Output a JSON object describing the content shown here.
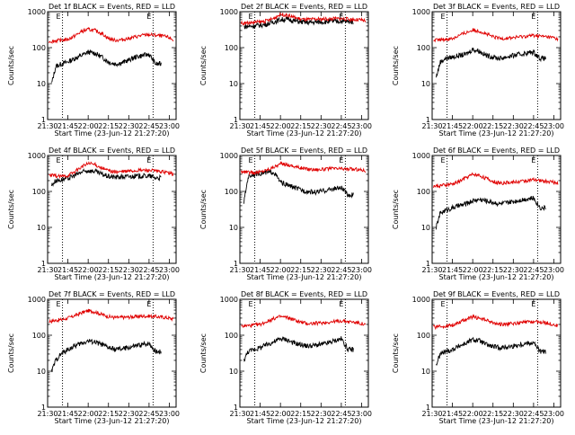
{
  "start_time_label": "Start Time (23-Jun-12 21:27:20)",
  "ylabel": "Counts/sec",
  "marker_letter": "E",
  "series_colors": {
    "events": "#000000",
    "lld": "#e00000"
  },
  "chart_data": [
    {
      "type": "line",
      "title": "Det 1f BLACK = Events, RED = LLD",
      "xlabel": "Start Time (23-Jun-12 21:27:20)",
      "ylabel": "Counts/sec",
      "xlim": [
        "21:30",
        "23:05"
      ],
      "xticks": [
        "21:30",
        "21:45",
        "22:00",
        "22:15",
        "22:30",
        "22:45",
        "23:00"
      ],
      "ylim": [
        1,
        1000
      ],
      "yscale": "log",
      "yticks": [
        "1",
        "10",
        "100",
        "1000"
      ],
      "event_markers": [
        "21:41",
        "22:48"
      ],
      "x": [
        "21:33",
        "21:36",
        "21:40",
        "21:45",
        "21:50",
        "21:55",
        "22:00",
        "22:05",
        "22:10",
        "22:15",
        "22:20",
        "22:25",
        "22:30",
        "22:35",
        "22:40",
        "22:45",
        "22:50",
        "22:55",
        "23:00",
        "23:03"
      ],
      "series": [
        {
          "name": "Events",
          "start": "21:33",
          "end": "22:54",
          "values": [
            10,
            30,
            35,
            40,
            50,
            60,
            75,
            70,
            55,
            40,
            35,
            38,
            45,
            55,
            60,
            65,
            35,
            null,
            null,
            null
          ]
        },
        {
          "name": "LLD",
          "start": "21:31",
          "end": "23:03",
          "values": [
            150,
            155,
            160,
            170,
            210,
            280,
            320,
            300,
            250,
            180,
            160,
            165,
            180,
            200,
            220,
            230,
            220,
            210,
            190,
            160
          ]
        }
      ]
    },
    {
      "type": "line",
      "title": "Det 2f BLACK = Events, RED = LLD",
      "xlabel": "Start Time (23-Jun-12 21:27:20)",
      "ylabel": "Counts/sec",
      "xlim": [
        "21:30",
        "23:05"
      ],
      "xticks": [
        "21:30",
        "21:45",
        "22:00",
        "22:15",
        "22:30",
        "22:45",
        "23:00"
      ],
      "ylim": [
        1,
        1000
      ],
      "yscale": "log",
      "yticks": [
        "1",
        "10",
        "100",
        "1000"
      ],
      "event_markers": [
        "21:41",
        "22:48"
      ],
      "x": [
        "21:33",
        "21:36",
        "21:40",
        "21:45",
        "21:50",
        "21:55",
        "22:00",
        "22:05",
        "22:10",
        "22:15",
        "22:20",
        "22:25",
        "22:30",
        "22:35",
        "22:40",
        "22:45",
        "22:50",
        "22:55",
        "23:00",
        "23:03"
      ],
      "series": [
        {
          "name": "Events",
          "start": "21:33",
          "end": "22:54",
          "values": [
            380,
            390,
            400,
            420,
            450,
            520,
            600,
            620,
            560,
            520,
            500,
            510,
            520,
            530,
            540,
            540,
            530,
            null,
            null,
            null
          ]
        },
        {
          "name": "LLD",
          "start": "21:31",
          "end": "23:03",
          "values": [
            480,
            490,
            500,
            520,
            560,
            650,
            850,
            800,
            700,
            620,
            600,
            610,
            620,
            630,
            640,
            640,
            620,
            600,
            580,
            550
          ]
        }
      ]
    },
    {
      "type": "line",
      "title": "Det 3f BLACK = Events, RED = LLD",
      "xlabel": "Start Time (23-Jun-12 21:27:20)",
      "ylabel": "Counts/sec",
      "xlim": [
        "21:30",
        "23:05"
      ],
      "xticks": [
        "21:30",
        "21:45",
        "22:00",
        "22:15",
        "22:30",
        "22:45",
        "23:00"
      ],
      "ylim": [
        1,
        1000
      ],
      "yscale": "log",
      "yticks": [
        "1",
        "10",
        "100",
        "1000"
      ],
      "event_markers": [
        "21:41",
        "22:48"
      ],
      "x": [
        "21:33",
        "21:36",
        "21:40",
        "21:45",
        "21:50",
        "21:55",
        "22:00",
        "22:05",
        "22:10",
        "22:15",
        "22:20",
        "22:25",
        "22:30",
        "22:35",
        "22:40",
        "22:45",
        "22:50",
        "22:55",
        "23:00",
        "23:03"
      ],
      "series": [
        {
          "name": "Events",
          "start": "21:33",
          "end": "22:54",
          "values": [
            15,
            40,
            50,
            55,
            60,
            65,
            90,
            80,
            60,
            55,
            50,
            55,
            60,
            65,
            70,
            75,
            50,
            null,
            null,
            null
          ]
        },
        {
          "name": "LLD",
          "start": "21:31",
          "end": "23:03",
          "values": [
            160,
            165,
            170,
            180,
            220,
            260,
            310,
            290,
            240,
            200,
            180,
            185,
            190,
            200,
            210,
            220,
            210,
            200,
            190,
            170
          ]
        }
      ]
    },
    {
      "type": "line",
      "title": "Det 4f BLACK = Events, RED = LLD",
      "xlabel": "Start Time (23-Jun-12 21:27:20)",
      "ylabel": "Counts/sec",
      "xlim": [
        "21:30",
        "23:05"
      ],
      "xticks": [
        "21:30",
        "21:45",
        "22:00",
        "22:15",
        "22:30",
        "22:45",
        "23:00"
      ],
      "ylim": [
        1,
        1000
      ],
      "yscale": "log",
      "yticks": [
        "1",
        "10",
        "100",
        "1000"
      ],
      "event_markers": [
        "21:41",
        "22:48"
      ],
      "x": [
        "21:33",
        "21:36",
        "21:40",
        "21:45",
        "21:50",
        "21:55",
        "22:00",
        "22:05",
        "22:10",
        "22:15",
        "22:20",
        "22:25",
        "22:30",
        "22:35",
        "22:40",
        "22:45",
        "22:50",
        "22:55",
        "23:00",
        "23:03"
      ],
      "series": [
        {
          "name": "Events",
          "start": "21:33",
          "end": "22:54",
          "values": [
            150,
            200,
            210,
            230,
            280,
            340,
            380,
            360,
            300,
            260,
            250,
            255,
            260,
            265,
            270,
            270,
            240,
            null,
            null,
            null
          ]
        },
        {
          "name": "LLD",
          "start": "21:31",
          "end": "23:03",
          "values": [
            280,
            270,
            260,
            280,
            350,
            480,
            600,
            560,
            450,
            380,
            350,
            355,
            370,
            380,
            390,
            390,
            370,
            350,
            330,
            300
          ]
        }
      ]
    },
    {
      "type": "line",
      "title": "Det 5f BLACK = Events, RED = LLD",
      "xlabel": "Start Time (23-Jun-12 21:27:20)",
      "ylabel": "Counts/sec",
      "xlim": [
        "21:30",
        "23:05"
      ],
      "xticks": [
        "21:30",
        "21:45",
        "22:00",
        "22:15",
        "22:30",
        "22:45",
        "23:00"
      ],
      "ylim": [
        1,
        1000
      ],
      "yscale": "log",
      "yticks": [
        "1",
        "10",
        "100",
        "1000"
      ],
      "event_markers": [
        "21:41",
        "22:48"
      ],
      "x": [
        "21:33",
        "21:36",
        "21:40",
        "21:45",
        "21:50",
        "21:55",
        "22:00",
        "22:05",
        "22:10",
        "22:15",
        "22:20",
        "22:25",
        "22:30",
        "22:35",
        "22:40",
        "22:45",
        "22:50",
        "22:55",
        "23:00",
        "23:03"
      ],
      "series": [
        {
          "name": "Events",
          "start": "21:33",
          "end": "22:54",
          "values": [
            50,
            250,
            300,
            320,
            330,
            350,
            180,
            150,
            130,
            110,
            100,
            95,
            100,
            110,
            120,
            125,
            80,
            null,
            null,
            null
          ]
        },
        {
          "name": "LLD",
          "start": "21:31",
          "end": "23:03",
          "values": [
            350,
            340,
            330,
            350,
            400,
            480,
            580,
            560,
            500,
            450,
            420,
            410,
            410,
            420,
            430,
            430,
            420,
            410,
            400,
            380
          ]
        }
      ]
    },
    {
      "type": "line",
      "title": "Det 6f BLACK = Events, RED = LLD",
      "xlabel": "Start Time (23-Jun-12 21:27:20)",
      "ylabel": "Counts/sec",
      "xlim": [
        "21:30",
        "23:05"
      ],
      "xticks": [
        "21:30",
        "21:45",
        "22:00",
        "22:15",
        "22:30",
        "22:45",
        "23:00"
      ],
      "ylim": [
        1,
        1000
      ],
      "yscale": "log",
      "yticks": [
        "1",
        "10",
        "100",
        "1000"
      ],
      "event_markers": [
        "21:41",
        "22:48"
      ],
      "x": [
        "21:33",
        "21:36",
        "21:40",
        "21:45",
        "21:50",
        "21:55",
        "22:00",
        "22:05",
        "22:10",
        "22:15",
        "22:20",
        "22:25",
        "22:30",
        "22:35",
        "22:40",
        "22:45",
        "22:50",
        "22:55",
        "23:00",
        "23:03"
      ],
      "series": [
        {
          "name": "Events",
          "start": "21:33",
          "end": "22:54",
          "values": [
            10,
            25,
            30,
            35,
            40,
            45,
            55,
            60,
            55,
            50,
            45,
            48,
            52,
            58,
            62,
            65,
            35,
            null,
            null,
            null
          ]
        },
        {
          "name": "LLD",
          "start": "21:31",
          "end": "23:03",
          "values": [
            140,
            145,
            150,
            160,
            190,
            240,
            300,
            280,
            230,
            190,
            170,
            175,
            180,
            190,
            200,
            210,
            200,
            190,
            180,
            160
          ]
        }
      ]
    },
    {
      "type": "line",
      "title": "Det 7f BLACK = Events, RED = LLD",
      "xlabel": "Start Time (23-Jun-12 21:27:20)",
      "ylabel": "Counts/sec",
      "xlim": [
        "21:30",
        "23:05"
      ],
      "xticks": [
        "21:30",
        "21:45",
        "22:00",
        "22:15",
        "22:30",
        "22:45",
        "23:00"
      ],
      "ylim": [
        1,
        1000
      ],
      "yscale": "log",
      "yticks": [
        "1",
        "10",
        "100",
        "1000"
      ],
      "event_markers": [
        "21:41",
        "22:48"
      ],
      "x": [
        "21:33",
        "21:36",
        "21:40",
        "21:45",
        "21:50",
        "21:55",
        "22:00",
        "22:05",
        "22:10",
        "22:15",
        "22:20",
        "22:25",
        "22:30",
        "22:35",
        "22:40",
        "22:45",
        "22:50",
        "22:55",
        "23:00",
        "23:03"
      ],
      "series": [
        {
          "name": "Events",
          "start": "21:33",
          "end": "22:54",
          "values": [
            10,
            20,
            30,
            40,
            50,
            60,
            70,
            65,
            55,
            45,
            40,
            42,
            45,
            50,
            55,
            60,
            35,
            null,
            null,
            null
          ]
        },
        {
          "name": "LLD",
          "start": "21:31",
          "end": "23:03",
          "values": [
            250,
            260,
            270,
            300,
            350,
            420,
            480,
            450,
            380,
            330,
            310,
            315,
            320,
            330,
            340,
            340,
            330,
            320,
            300,
            280
          ]
        }
      ]
    },
    {
      "type": "line",
      "title": "Det 8f BLACK = Events, RED = LLD",
      "xlabel": "Start Time (23-Jun-12 21:27:20)",
      "ylabel": "Counts/sec",
      "xlim": [
        "21:30",
        "23:05"
      ],
      "xticks": [
        "21:30",
        "21:45",
        "22:00",
        "22:15",
        "22:30",
        "22:45",
        "23:00"
      ],
      "ylim": [
        1,
        1000
      ],
      "yscale": "log",
      "yticks": [
        "1",
        "10",
        "100",
        "1000"
      ],
      "event_markers": [
        "21:41",
        "22:48"
      ],
      "x": [
        "21:33",
        "21:36",
        "21:40",
        "21:45",
        "21:50",
        "21:55",
        "22:00",
        "22:05",
        "22:10",
        "22:15",
        "22:20",
        "22:25",
        "22:30",
        "22:35",
        "22:40",
        "22:45",
        "22:50",
        "22:55",
        "23:00",
        "23:03"
      ],
      "series": [
        {
          "name": "Events",
          "start": "21:33",
          "end": "22:54",
          "values": [
            20,
            35,
            40,
            45,
            55,
            65,
            80,
            75,
            60,
            55,
            50,
            52,
            55,
            60,
            70,
            80,
            40,
            null,
            null,
            null
          ]
        },
        {
          "name": "LLD",
          "start": "21:31",
          "end": "23:03",
          "values": [
            180,
            185,
            190,
            200,
            240,
            290,
            330,
            310,
            270,
            230,
            210,
            215,
            220,
            230,
            240,
            250,
            240,
            230,
            210,
            190
          ]
        }
      ]
    },
    {
      "type": "line",
      "title": "Det 9f BLACK = Events, RED = LLD",
      "xlabel": "Start Time (23-Jun-12 21:27:20)",
      "ylabel": "Counts/sec",
      "xlim": [
        "21:30",
        "23:05"
      ],
      "xticks": [
        "21:30",
        "21:45",
        "22:00",
        "22:15",
        "22:30",
        "22:45",
        "23:00"
      ],
      "ylim": [
        1,
        1000
      ],
      "yscale": "log",
      "yticks": [
        "1",
        "10",
        "100",
        "1000"
      ],
      "event_markers": [
        "21:41",
        "22:48"
      ],
      "x": [
        "21:33",
        "21:36",
        "21:40",
        "21:45",
        "21:50",
        "21:55",
        "22:00",
        "22:05",
        "22:10",
        "22:15",
        "22:20",
        "22:25",
        "22:30",
        "22:35",
        "22:40",
        "22:45",
        "22:50",
        "22:55",
        "23:00",
        "23:03"
      ],
      "series": [
        {
          "name": "Events",
          "start": "21:33",
          "end": "22:54",
          "values": [
            15,
            30,
            35,
            40,
            50,
            60,
            75,
            70,
            55,
            48,
            45,
            47,
            50,
            55,
            60,
            62,
            35,
            null,
            null,
            null
          ]
        },
        {
          "name": "LLD",
          "start": "21:31",
          "end": "23:03",
          "values": [
            170,
            175,
            180,
            190,
            230,
            280,
            320,
            300,
            260,
            220,
            200,
            205,
            210,
            220,
            230,
            240,
            230,
            220,
            200,
            180
          ]
        }
      ]
    }
  ]
}
